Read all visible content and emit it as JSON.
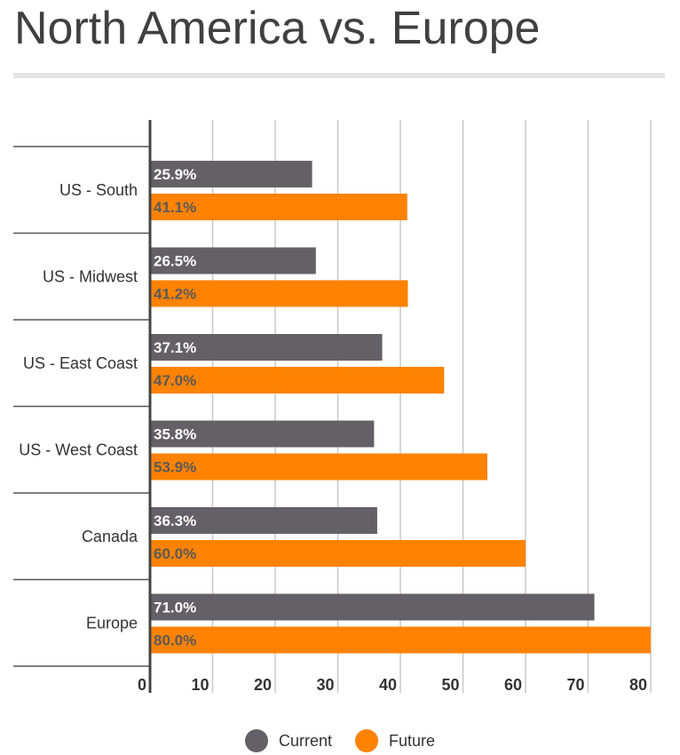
{
  "chart_data": {
    "type": "bar",
    "orientation": "horizontal",
    "title": "North America vs. Europe",
    "categories": [
      "US - South",
      "US - Midwest",
      "US - East Coast",
      "US - West Coast",
      "Canada",
      "Europe"
    ],
    "series": [
      {
        "name": "Current",
        "color": "#636066",
        "values": [
          25.9,
          26.5,
          37.1,
          35.8,
          36.3,
          71.0
        ],
        "labels": [
          "25.9%",
          "26.5%",
          "37.1%",
          "35.8%",
          "36.3%",
          "71.0%"
        ]
      },
      {
        "name": "Future",
        "color": "#ff8200",
        "values": [
          41.1,
          41.2,
          47.0,
          53.9,
          60.0,
          80.0
        ],
        "labels": [
          "41.1%",
          "41.2%",
          "47.0%",
          "53.9%",
          "60.0%",
          "80.0%"
        ]
      }
    ],
    "xlim": [
      0,
      80
    ],
    "xticks": [
      "0",
      "10",
      "20",
      "30",
      "40",
      "50",
      "60",
      "70",
      "80"
    ],
    "grid": true,
    "legend_position": "bottom-center"
  }
}
